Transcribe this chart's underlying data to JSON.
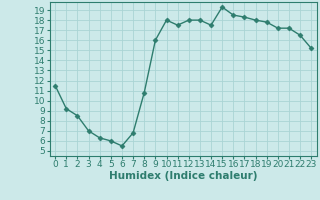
{
  "x": [
    0,
    1,
    2,
    3,
    4,
    5,
    6,
    7,
    8,
    9,
    10,
    11,
    12,
    13,
    14,
    15,
    16,
    17,
    18,
    19,
    20,
    21,
    22,
    23
  ],
  "y": [
    11.5,
    9.2,
    8.5,
    7.0,
    6.3,
    6.0,
    5.5,
    6.8,
    10.8,
    16.0,
    18.0,
    17.5,
    18.0,
    18.0,
    17.5,
    19.3,
    18.5,
    18.3,
    18.0,
    17.8,
    17.2,
    17.2,
    16.5,
    15.2
  ],
  "xlabel": "Humidex (Indice chaleur)",
  "line_color": "#2e7d6e",
  "marker": "D",
  "marker_size": 2.5,
  "bg_color": "#cce9e9",
  "grid_color": "#aad4d4",
  "xlim": [
    -0.5,
    23.5
  ],
  "ylim": [
    4.5,
    19.8
  ],
  "xticks": [
    0,
    1,
    2,
    3,
    4,
    5,
    6,
    7,
    8,
    9,
    10,
    11,
    12,
    13,
    14,
    15,
    16,
    17,
    18,
    19,
    20,
    21,
    22,
    23
  ],
  "yticks": [
    5,
    6,
    7,
    8,
    9,
    10,
    11,
    12,
    13,
    14,
    15,
    16,
    17,
    18,
    19
  ],
  "tick_color": "#2e7d6e",
  "font_size": 6.5,
  "xlabel_fontsize": 7.5
}
